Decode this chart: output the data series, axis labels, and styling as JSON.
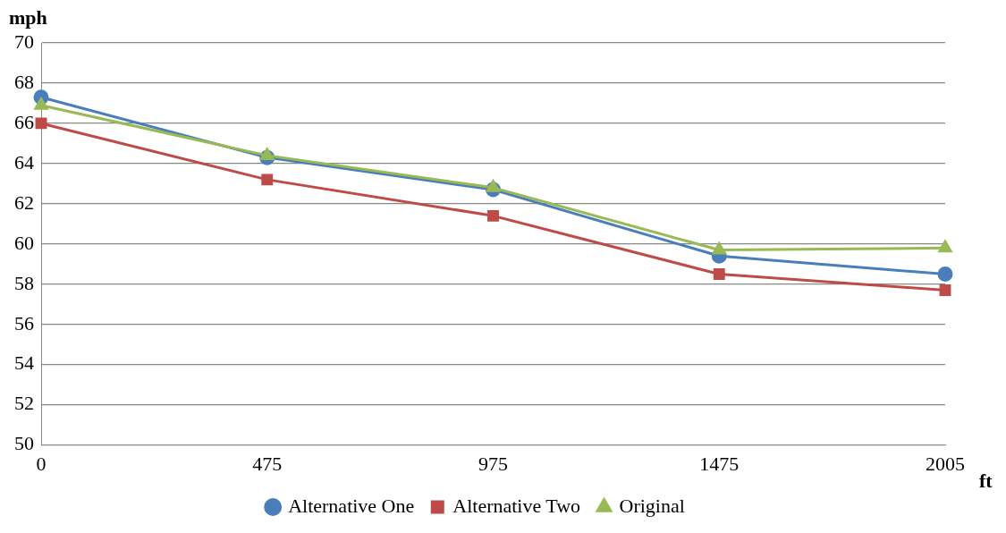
{
  "chart_data": {
    "type": "line",
    "xlabel": "ft",
    "ylabel": "mph",
    "categories": [
      "0",
      "475",
      "975",
      "1475",
      "2005"
    ],
    "series": [
      {
        "name": "Alternative One",
        "color": "#4a7ebb",
        "marker": "circle",
        "values": [
          67.3,
          64.3,
          62.7,
          59.4,
          58.5
        ]
      },
      {
        "name": "Alternative Two",
        "color": "#be4b48",
        "marker": "square",
        "values": [
          66.0,
          63.2,
          61.4,
          58.5,
          57.7
        ]
      },
      {
        "name": "Original",
        "color": "#98b954",
        "marker": "triangle",
        "values": [
          66.9,
          64.4,
          62.8,
          59.7,
          59.8
        ]
      }
    ],
    "ylim": [
      50,
      70
    ],
    "yticks": [
      50,
      52,
      54,
      56,
      58,
      60,
      62,
      64,
      66,
      68,
      70
    ],
    "grid": "y",
    "legend": "bottom"
  }
}
